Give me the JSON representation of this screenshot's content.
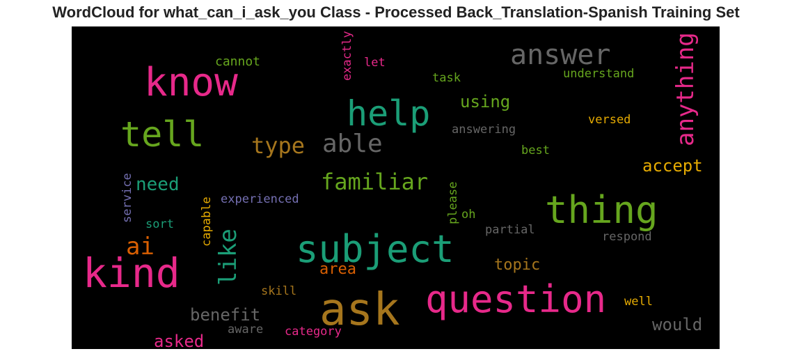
{
  "chart_data": {
    "type": "wordcloud",
    "title": "WordCloud for what_can_i_ask_you Class - Processed Back_Translation-Spanish Training Set",
    "background": "#000000",
    "colormap": [
      "#e7298a",
      "#66a61e",
      "#1b9e77",
      "#a6761d",
      "#666666",
      "#e6ab02",
      "#d95f02",
      "#7570b3"
    ],
    "words": [
      {
        "text": "know",
        "color": "#e7298a",
        "orientation": "horizontal"
      },
      {
        "text": "answer",
        "color": "#666666",
        "orientation": "horizontal"
      },
      {
        "text": "help",
        "color": "#1b9e77",
        "orientation": "horizontal"
      },
      {
        "text": "tell",
        "color": "#66a61e",
        "orientation": "horizontal"
      },
      {
        "text": "anything",
        "color": "#e7298a",
        "orientation": "vertical"
      },
      {
        "text": "type",
        "color": "#a6761d",
        "orientation": "horizontal"
      },
      {
        "text": "able",
        "color": "#666666",
        "orientation": "horizontal"
      },
      {
        "text": "familiar",
        "color": "#66a61e",
        "orientation": "horizontal"
      },
      {
        "text": "need",
        "color": "#1b9e77",
        "orientation": "horizontal"
      },
      {
        "text": "thing",
        "color": "#66a61e",
        "orientation": "horizontal"
      },
      {
        "text": "accept",
        "color": "#e6ab02",
        "orientation": "horizontal"
      },
      {
        "text": "ai",
        "color": "#d95f02",
        "orientation": "horizontal"
      },
      {
        "text": "like",
        "color": "#1b9e77",
        "orientation": "vertical"
      },
      {
        "text": "subject",
        "color": "#1b9e77",
        "orientation": "horizontal"
      },
      {
        "text": "kind",
        "color": "#e7298a",
        "orientation": "horizontal"
      },
      {
        "text": "ask",
        "color": "#a6761d",
        "orientation": "horizontal"
      },
      {
        "text": "question",
        "color": "#e7298a",
        "orientation": "horizontal"
      },
      {
        "text": "area",
        "color": "#d95f02",
        "orientation": "horizontal"
      },
      {
        "text": "topic",
        "color": "#a6761d",
        "orientation": "horizontal"
      },
      {
        "text": "benefit",
        "color": "#666666",
        "orientation": "horizontal"
      },
      {
        "text": "asked",
        "color": "#e7298a",
        "orientation": "horizontal"
      },
      {
        "text": "would",
        "color": "#666666",
        "orientation": "horizontal"
      },
      {
        "text": "using",
        "color": "#66a61e",
        "orientation": "horizontal"
      },
      {
        "text": "cannot",
        "color": "#66a61e",
        "orientation": "horizontal"
      },
      {
        "text": "exactly",
        "color": "#e7298a",
        "orientation": "vertical"
      },
      {
        "text": "let",
        "color": "#e7298a",
        "orientation": "horizontal"
      },
      {
        "text": "task",
        "color": "#66a61e",
        "orientation": "horizontal"
      },
      {
        "text": "understand",
        "color": "#66a61e",
        "orientation": "horizontal"
      },
      {
        "text": "answering",
        "color": "#666666",
        "orientation": "horizontal"
      },
      {
        "text": "versed",
        "color": "#e6ab02",
        "orientation": "horizontal"
      },
      {
        "text": "best",
        "color": "#66a61e",
        "orientation": "horizontal"
      },
      {
        "text": "experienced",
        "color": "#7570b3",
        "orientation": "horizontal"
      },
      {
        "text": "service",
        "color": "#7570b3",
        "orientation": "vertical"
      },
      {
        "text": "sort",
        "color": "#1b9e77",
        "orientation": "horizontal"
      },
      {
        "text": "capable",
        "color": "#e6ab02",
        "orientation": "vertical"
      },
      {
        "text": "please",
        "color": "#66a61e",
        "orientation": "vertical"
      },
      {
        "text": "oh",
        "color": "#66a61e",
        "orientation": "horizontal"
      },
      {
        "text": "partial",
        "color": "#666666",
        "orientation": "horizontal"
      },
      {
        "text": "respond",
        "color": "#666666",
        "orientation": "horizontal"
      },
      {
        "text": "skill",
        "color": "#a6761d",
        "orientation": "horizontal"
      },
      {
        "text": "well",
        "color": "#e6ab02",
        "orientation": "horizontal"
      },
      {
        "text": "aware",
        "color": "#666666",
        "orientation": "horizontal"
      },
      {
        "text": "category",
        "color": "#e7298a",
        "orientation": "horizontal"
      }
    ]
  }
}
